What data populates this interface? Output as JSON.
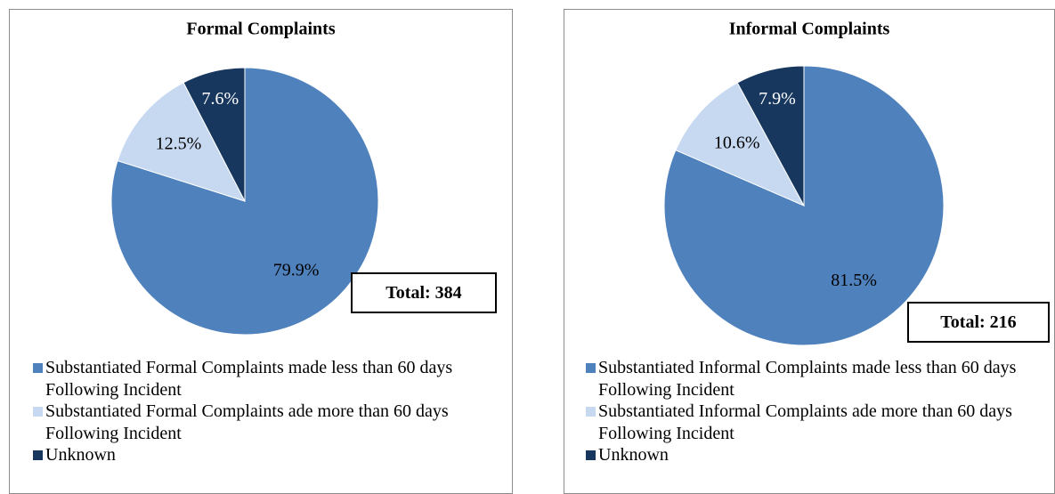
{
  "chart_data": [
    {
      "type": "pie",
      "title": "Formal Complaints",
      "categories": [
        "Substantiated Formal Complaints made less than 60 days Following Incident",
        "Substantiated Formal Complaints ade more than 60 days Following Incident",
        "Unknown"
      ],
      "values": [
        79.9,
        12.5,
        7.6
      ],
      "value_labels": [
        "79.9%",
        "12.5%",
        "7.6%"
      ],
      "colors": [
        "#4f81bd",
        "#c6d9f1",
        "#17375e"
      ],
      "annotation": "Total: 384"
    },
    {
      "type": "pie",
      "title": "Informal Complaints",
      "categories": [
        "Substantiated Informal Complaints made less than 60 days Following Incident",
        "Substantiated Informal Complaints ade more than 60 days Following Incident",
        "Unknown"
      ],
      "values": [
        81.5,
        10.6,
        7.9
      ],
      "value_labels": [
        "81.5%",
        "10.6%",
        "7.9%"
      ],
      "colors": [
        "#4f81bd",
        "#c6d9f1",
        "#17375e"
      ],
      "annotation": "Total: 216"
    }
  ]
}
